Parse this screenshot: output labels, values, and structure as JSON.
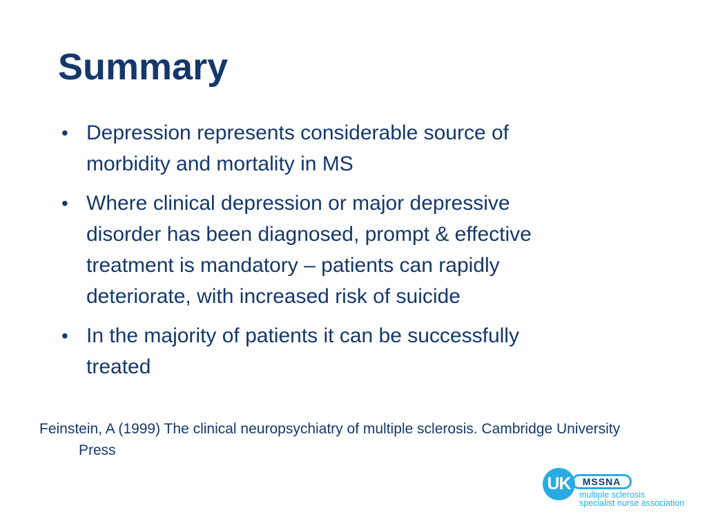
{
  "slide": {
    "title": "Summary",
    "bullet_marker": "•",
    "bullets": [
      {
        "lines": [
          "Depression represents considerable source of",
          "morbidity and mortality in MS"
        ]
      },
      {
        "lines": [
          "Where clinical depression or major depressive",
          "disorder has been diagnosed, prompt & effective",
          "treatment is mandatory – patients can rapidly",
          "deteriorate, with increased risk of suicide"
        ]
      },
      {
        "lines": [
          "In the majority of patients it can be successfully",
          "treated"
        ]
      }
    ],
    "reference": {
      "line1": "Feinstein, A (1999) The clinical neuropsychiatry of multiple sclerosis. Cambridge University",
      "line2": "Press"
    },
    "logo": {
      "circle_text": "UK",
      "badge_text": "MSSNA",
      "tagline_line1": "multiple sclerosis",
      "tagline_line2": "specialist nurse association"
    },
    "colors": {
      "text_navy": "#14386B",
      "logo_blue": "#29ABE2",
      "background": "#FFFFFF"
    }
  }
}
